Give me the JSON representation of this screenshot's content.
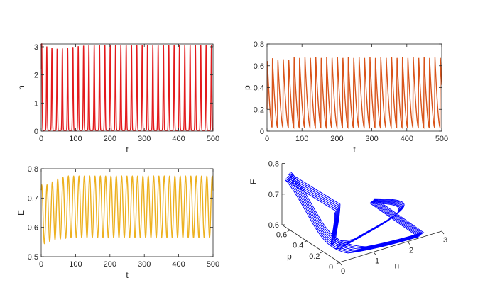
{
  "chart_data": [
    {
      "id": "n",
      "type": "line",
      "xlabel": "t",
      "ylabel": "n",
      "xlim": [
        0,
        500
      ],
      "ylim": [
        0,
        3.1
      ],
      "xticks": [
        "0",
        "100",
        "200",
        "300",
        "400",
        "500"
      ],
      "yticks": [
        "0",
        "1",
        "2",
        "3"
      ],
      "xtick_values": [
        0,
        100,
        200,
        300,
        400,
        500
      ],
      "ytick_values": [
        0,
        1,
        2,
        3
      ],
      "color": "#e31a1c",
      "series": [
        {
          "peak_times": [
            1.5,
            16.3,
            31.2,
            46.4,
            61.6,
            77.0,
            92.3,
            107.8,
            123.3,
            138.8,
            154.3,
            169.8,
            185.3,
            200.8,
            216.3,
            231.8,
            247.3,
            262.8,
            278.3,
            293.8,
            309.3,
            324.8,
            340.3,
            355.8,
            371.3,
            386.8,
            402.3,
            417.8,
            433.3,
            448.8,
            464.3,
            479.8,
            495.3
          ],
          "peak_values": [
            3.1,
            2.98,
            2.93,
            2.9,
            2.91,
            2.93,
            2.96,
            2.99,
            3.01,
            3.02,
            3.03,
            3.03,
            3.03,
            3.03,
            3.03,
            3.03,
            3.03,
            3.03,
            3.03,
            3.03,
            3.03,
            3.03,
            3.03,
            3.03,
            3.03,
            3.03,
            3.03,
            3.03,
            3.03,
            3.03,
            3.03,
            3.03,
            3.03
          ],
          "baseline": 0.03
        }
      ]
    },
    {
      "id": "p",
      "type": "line",
      "xlabel": "t",
      "ylabel": "p",
      "xlim": [
        0,
        500
      ],
      "ylim": [
        0,
        0.8
      ],
      "xticks": [
        "0",
        "100",
        "200",
        "300",
        "400",
        "500"
      ],
      "yticks": [
        "0",
        "0.2",
        "0.4",
        "0.6",
        "0.8"
      ],
      "xtick_values": [
        0,
        100,
        200,
        300,
        400,
        500
      ],
      "ytick_values": [
        0,
        0.2,
        0.4,
        0.6,
        0.8
      ],
      "color": "#d95319",
      "series": [
        {
          "start": 0.2,
          "peak_values_first": [
            0.71,
            0.67,
            0.66,
            0.66,
            0.665
          ],
          "peak_value_steady": 0.68,
          "trough": 0.035
        }
      ]
    },
    {
      "id": "E",
      "type": "line",
      "xlabel": "t",
      "ylabel": "E",
      "xlim": [
        0,
        500
      ],
      "ylim": [
        0.5,
        0.8
      ],
      "xticks": [
        "0",
        "100",
        "200",
        "300",
        "400",
        "500"
      ],
      "yticks": [
        "0.5",
        "0.6",
        "0.7",
        "0.8"
      ],
      "xtick_values": [
        0,
        100,
        200,
        300,
        400,
        500
      ],
      "ytick_values": [
        0.5,
        0.6,
        0.7,
        0.8
      ],
      "color": "#edb120",
      "series": [
        {
          "start": 0.75,
          "max_first": [
            0.745,
            0.745,
            0.755,
            0.765,
            0.77
          ],
          "max_steady": 0.775,
          "min_first": [
            0.545,
            0.552,
            0.558,
            0.561,
            0.563
          ],
          "min_steady": 0.565
        }
      ]
    },
    {
      "id": "phase",
      "type": "line3d",
      "xlabel": "n",
      "ylabel": "p",
      "zlabel": "E",
      "xlim": [
        0,
        3
      ],
      "ylim": [
        0,
        0.7
      ],
      "zlim": [
        0.6,
        0.8
      ],
      "xticks": [
        "0",
        "1",
        "2",
        "3"
      ],
      "yticks": [
        "0",
        "0.2",
        "0.4",
        "0.6"
      ],
      "zticks": [
        "0.6",
        "0.7",
        "0.8"
      ],
      "xtick_values": [
        0,
        1,
        2,
        3
      ],
      "ytick_values": [
        0,
        0.2,
        0.4,
        0.6
      ],
      "ztick_values": [
        0.6,
        0.7,
        0.8
      ],
      "color": "#0000ff",
      "series": [
        {
          "loops": 7
        }
      ]
    }
  ]
}
